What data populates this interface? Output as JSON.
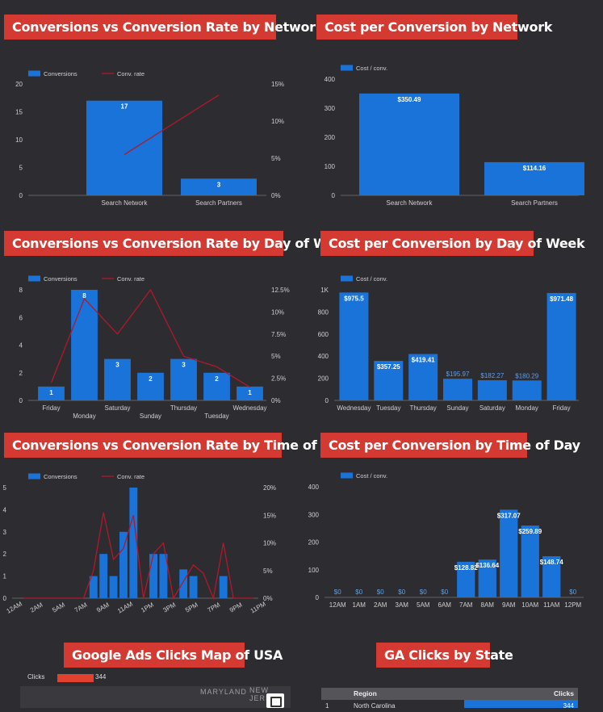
{
  "titles": {
    "conv_network": "Conversions vs Conversion Rate by Network",
    "cost_network": "Cost per Conversion by Network",
    "conv_dow": "Conversions vs Conversion Rate by Day of Week",
    "cost_dow": "Cost per Conversion by Day of Week",
    "conv_tod": "Conversions vs Conversion Rate by Time of Day",
    "cost_tod": "Cost per Conversion by Time of Day",
    "map": "Google Ads Clicks Map of USA",
    "state": "GA Clicks by State"
  },
  "colors": {
    "bar": "#1a73d9",
    "line": "#b2182b",
    "title_bg": "#d43a32"
  },
  "chart_data": [
    {
      "id": "conv_network",
      "type": "bar+line",
      "categories": [
        "Search Network",
        "Search Partners"
      ],
      "series": [
        {
          "name": "Conversions",
          "type": "bar",
          "axis": "left",
          "values": [
            17,
            3
          ],
          "labels": [
            "17",
            "3"
          ]
        },
        {
          "name": "Conv. rate",
          "type": "line",
          "axis": "right",
          "values": [
            5.5,
            13.5
          ]
        }
      ],
      "y_left": {
        "min": 0,
        "max": 20,
        "ticks": [
          "0",
          "5",
          "10",
          "15",
          "20"
        ]
      },
      "y_right": {
        "min": 0,
        "max": 15,
        "ticks": [
          "0%",
          "5%",
          "10%",
          "15%"
        ]
      },
      "legend": "top-left"
    },
    {
      "id": "cost_network",
      "type": "bar",
      "categories": [
        "Search Network",
        "Search Partners"
      ],
      "series": [
        {
          "name": "Cost / conv.",
          "values": [
            350.49,
            114.16
          ],
          "labels": [
            "$350.49",
            "$114.16"
          ]
        }
      ],
      "y": {
        "min": 0,
        "max": 400,
        "ticks": [
          "0",
          "100",
          "200",
          "300",
          "400"
        ]
      },
      "legend": "top-left"
    },
    {
      "id": "conv_dow",
      "type": "bar+line",
      "categories": [
        "Friday",
        "Monday",
        "Saturday",
        "Sunday",
        "Thursday",
        "Tuesday",
        "Wednesday"
      ],
      "series": [
        {
          "name": "Conversions",
          "type": "bar",
          "axis": "left",
          "values": [
            1,
            8,
            3,
            2,
            3,
            2,
            1
          ],
          "labels": [
            "1",
            "8",
            "3",
            "2",
            "3",
            "2",
            "1"
          ]
        },
        {
          "name": "Conv. rate",
          "type": "line",
          "axis": "right",
          "values": [
            2,
            11.5,
            7.5,
            12.5,
            5,
            3.8,
            1.5
          ]
        }
      ],
      "y_left": {
        "min": 0,
        "max": 8,
        "ticks": [
          "0",
          "2",
          "4",
          "6",
          "8"
        ]
      },
      "y_right": {
        "min": 0,
        "max": 12.5,
        "ticks": [
          "0%",
          "2.5%",
          "5%",
          "7.5%",
          "10%",
          "12.5%"
        ]
      },
      "legend": "top-left"
    },
    {
      "id": "cost_dow",
      "type": "bar",
      "categories": [
        "Wednesday",
        "Tuesday",
        "Thursday",
        "Sunday",
        "Saturday",
        "Monday",
        "Friday"
      ],
      "series": [
        {
          "name": "Cost / conv.",
          "values": [
            975.5,
            357.25,
            419.41,
            195.97,
            182.27,
            180.29,
            971.48
          ],
          "labels": [
            "$975.5",
            "$357.25",
            "$419.41",
            "$195.97",
            "$182.27",
            "$180.29",
            "$971.48"
          ]
        }
      ],
      "y": {
        "min": 0,
        "max": 1000,
        "ticks": [
          "0",
          "200",
          "400",
          "600",
          "800",
          "1K"
        ]
      },
      "legend": "top-left"
    },
    {
      "id": "conv_tod",
      "type": "bar+line",
      "categories": [
        "12AM",
        "1AM",
        "2AM",
        "3AM",
        "4AM",
        "5AM",
        "6AM",
        "7AM",
        "8AM",
        "9AM",
        "10AM",
        "11AM",
        "12PM",
        "1PM",
        "2PM",
        "3PM",
        "4PM",
        "5PM",
        "6PM",
        "7PM",
        "8PM",
        "9PM",
        "10PM",
        "11PM"
      ],
      "tick_labels": [
        "12AM",
        "2AM",
        "5AM",
        "7AM",
        "9AM",
        "11AM",
        "1PM",
        "3PM",
        "5PM",
        "7PM",
        "9PM",
        "11PM"
      ],
      "series": [
        {
          "name": "Conversions",
          "type": "bar",
          "axis": "left",
          "values": [
            0,
            0,
            0,
            0,
            0,
            0,
            0,
            1,
            2,
            1,
            3,
            5,
            0,
            2,
            2,
            0,
            1.3,
            1,
            0,
            0,
            1,
            0,
            0,
            0
          ]
        },
        {
          "name": "Conv. rate",
          "type": "line",
          "axis": "right",
          "values": [
            0,
            0,
            0,
            0,
            0,
            0,
            0,
            5,
            15.5,
            7,
            9,
            15,
            0,
            8,
            10,
            0,
            3,
            6,
            4.5,
            0,
            10,
            0,
            0,
            0
          ]
        }
      ],
      "y_left": {
        "min": 0,
        "max": 5,
        "ticks": [
          "0",
          "1",
          "2",
          "3",
          "4",
          "5"
        ]
      },
      "y_right": {
        "min": 0,
        "max": 20,
        "ticks": [
          "0%",
          "5%",
          "10%",
          "15%",
          "20%"
        ]
      },
      "legend": "top-left"
    },
    {
      "id": "cost_tod",
      "type": "bar",
      "categories": [
        "12AM",
        "1AM",
        "2AM",
        "3AM",
        "5AM",
        "6AM",
        "7AM",
        "8AM",
        "9AM",
        "10AM",
        "11AM",
        "12PM"
      ],
      "series": [
        {
          "name": "Cost / conv.",
          "values": [
            0,
            0,
            0,
            0,
            0,
            0,
            128.82,
            136.64,
            317.07,
            259.89,
            148.74,
            0
          ],
          "labels": [
            "$0",
            "$0",
            "$0",
            "$0",
            "$0",
            "$0",
            "$128.82",
            "$136.64",
            "$317.07",
            "$259.89",
            "$148.74",
            "$0"
          ]
        }
      ],
      "y": {
        "min": 0,
        "max": 400,
        "ticks": [
          "0",
          "100",
          "200",
          "300",
          "400"
        ]
      },
      "legend": "top-left"
    }
  ],
  "map": {
    "legend_label": "Clicks",
    "legend_min": "0",
    "legend_max": "344",
    "labels": [
      "MARYLAND",
      "NEW JERS"
    ]
  },
  "state_table": {
    "headers": [
      "Region",
      "Clicks"
    ],
    "rows": [
      {
        "index": "1",
        "region": "North Carolina",
        "clicks": "344"
      }
    ]
  }
}
